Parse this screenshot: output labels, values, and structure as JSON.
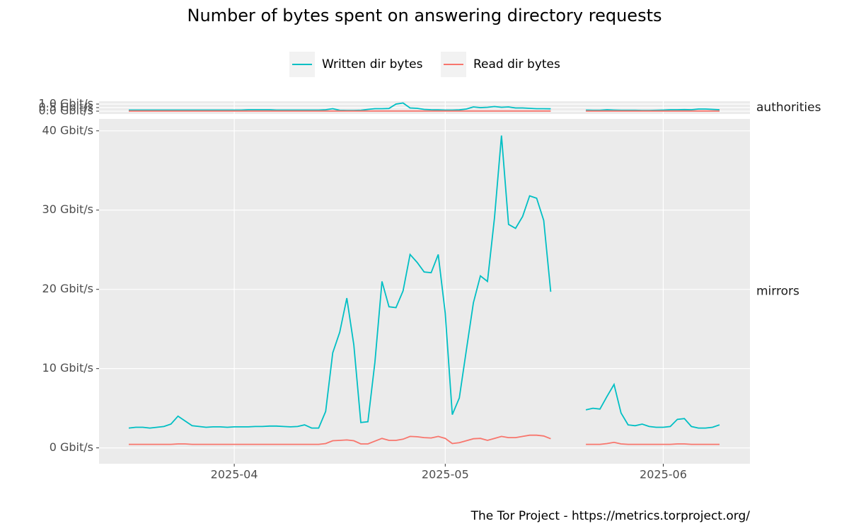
{
  "chart_data": {
    "type": "line",
    "title": "Number of bytes spent on answering directory requests",
    "caption": "The Tor Project - https://metrics.torproject.org/",
    "series": [
      {
        "name": "Written dir bytes",
        "color": "#00bfc4"
      },
      {
        "name": "Read dir bytes",
        "color": "#f8766d"
      }
    ],
    "categories": [
      null,
      null,
      null,
      null,
      null,
      null,
      null,
      null,
      null,
      null,
      null,
      null,
      null,
      null,
      null,
      "2025-04",
      null,
      null,
      null,
      null,
      null,
      null,
      null,
      null,
      null,
      null,
      null,
      null,
      null,
      null,
      null,
      null,
      null,
      null,
      null,
      null,
      null,
      null,
      null,
      null,
      null,
      null,
      null,
      null,
      null,
      "2025-05",
      null,
      null,
      null,
      null,
      null,
      null,
      null,
      null,
      null,
      null,
      null,
      null,
      null,
      null,
      null,
      null,
      null,
      null,
      null,
      null,
      null,
      null,
      null,
      null,
      null,
      null,
      null,
      null,
      null,
      null,
      "2025-06",
      null,
      null,
      null,
      null,
      null,
      null,
      null,
      null
    ],
    "facets": [
      {
        "label": "authorities",
        "ylim": [
          -0.4,
          1.4
        ],
        "yticks": [
          {
            "value": 0,
            "label": "0.0 Gbit/s"
          },
          {
            "value": 0.5,
            "label": "0.5 Gbit/s"
          },
          {
            "value": 1,
            "label": "1.0 Gbit/s"
          }
        ],
        "values": [
          [
            0.15,
            0.15,
            0.15,
            0.15,
            0.15,
            0.15,
            0.15,
            0.15,
            0.15,
            0.15,
            0.15,
            0.15,
            0.15,
            0.15,
            0.15,
            0.15,
            0.15,
            0.2,
            0.2,
            0.2,
            0.2,
            0.15,
            0.15,
            0.15,
            0.15,
            0.15,
            0.15,
            0.15,
            0.2,
            0.35,
            0.12,
            0.1,
            0.1,
            0.12,
            0.25,
            0.35,
            0.35,
            0.38,
            1.0,
            1.15,
            0.45,
            0.4,
            0.25,
            0.2,
            0.18,
            0.15,
            0.15,
            0.18,
            0.3,
            0.6,
            0.5,
            0.55,
            0.65,
            0.55,
            0.6,
            0.45,
            0.45,
            0.4,
            0.35,
            0.35,
            0.33,
            null,
            null,
            null,
            null,
            0.15,
            0.12,
            0.12,
            0.2,
            0.15,
            0.12,
            0.12,
            0.12,
            0.1,
            0.1,
            0.12,
            0.15,
            0.2,
            0.2,
            0.22,
            0.2,
            0.3,
            0.3,
            0.25,
            0.2
          ],
          [
            0.02,
            0.02,
            0.02,
            0.02,
            0.02,
            0.02,
            0.02,
            0.02,
            0.02,
            0.02,
            0.02,
            0.02,
            0.02,
            0.02,
            0.02,
            0.02,
            0.02,
            0.02,
            0.02,
            0.02,
            0.02,
            0.02,
            0.02,
            0.02,
            0.02,
            0.02,
            0.02,
            0.02,
            0.02,
            0.02,
            0.02,
            0.02,
            0.02,
            0.02,
            0.02,
            0.02,
            0.02,
            0.02,
            0.02,
            0.02,
            0.02,
            0.02,
            0.02,
            0.02,
            0.02,
            0.02,
            0.02,
            0.02,
            0.02,
            0.02,
            0.02,
            0.02,
            0.02,
            0.02,
            0.02,
            0.02,
            0.02,
            0.02,
            0.02,
            0.02,
            0.02,
            null,
            null,
            null,
            null,
            0.02,
            0.02,
            0.02,
            0.02,
            0.02,
            0.02,
            0.02,
            0.02,
            0.02,
            0.02,
            0.02,
            0.02,
            0.02,
            0.02,
            0.02,
            0.02,
            0.02,
            0.02,
            0.02,
            0.02
          ]
        ]
      },
      {
        "label": "mirrors",
        "ylim": [
          -2,
          41.5
        ],
        "yticks": [
          {
            "value": 0,
            "label": "0 Gbit/s"
          },
          {
            "value": 10,
            "label": "10 Gbit/s"
          },
          {
            "value": 20,
            "label": "20 Gbit/s"
          },
          {
            "value": 30,
            "label": "30 Gbit/s"
          },
          {
            "value": 40,
            "label": "40 Gbit/s"
          }
        ],
        "values": [
          [
            2.5,
            2.6,
            2.6,
            2.5,
            2.6,
            2.7,
            3.0,
            4.0,
            3.4,
            2.8,
            2.7,
            2.6,
            2.65,
            2.65,
            2.6,
            2.65,
            2.65,
            2.65,
            2.7,
            2.7,
            2.75,
            2.75,
            2.7,
            2.65,
            2.7,
            2.9,
            2.5,
            2.5,
            4.6,
            12.0,
            14.6,
            18.9,
            13.0,
            3.2,
            3.3,
            10.8,
            21.0,
            17.8,
            17.7,
            19.8,
            24.4,
            23.4,
            22.2,
            22.1,
            24.4,
            17.0,
            4.2,
            6.3,
            12.3,
            18.3,
            21.7,
            21.0,
            29.0,
            39.4,
            28.2,
            27.7,
            29.2,
            31.8,
            31.5,
            28.7,
            19.7,
            null,
            null,
            null,
            null,
            4.8,
            5.0,
            4.9,
            6.5,
            8.0,
            4.4,
            2.9,
            2.8,
            3.0,
            2.7,
            2.6,
            2.6,
            2.7,
            3.6,
            3.7,
            2.7,
            2.5,
            2.5,
            2.6,
            2.9
          ],
          [
            0.45,
            0.45,
            0.45,
            0.45,
            0.45,
            0.45,
            0.45,
            0.5,
            0.5,
            0.45,
            0.45,
            0.45,
            0.45,
            0.45,
            0.45,
            0.45,
            0.45,
            0.45,
            0.45,
            0.45,
            0.45,
            0.45,
            0.45,
            0.45,
            0.45,
            0.45,
            0.45,
            0.45,
            0.55,
            0.9,
            0.95,
            1.0,
            0.9,
            0.5,
            0.5,
            0.85,
            1.2,
            0.95,
            0.95,
            1.1,
            1.45,
            1.4,
            1.3,
            1.25,
            1.45,
            1.2,
            0.55,
            0.65,
            0.9,
            1.15,
            1.2,
            0.95,
            1.2,
            1.45,
            1.3,
            1.3,
            1.45,
            1.6,
            1.6,
            1.5,
            1.15,
            null,
            null,
            null,
            null,
            0.45,
            0.45,
            0.45,
            0.55,
            0.7,
            0.5,
            0.45,
            0.45,
            0.45,
            0.45,
            0.45,
            0.45,
            0.45,
            0.5,
            0.5,
            0.45,
            0.45,
            0.45,
            0.45,
            0.45
          ]
        ]
      }
    ]
  }
}
